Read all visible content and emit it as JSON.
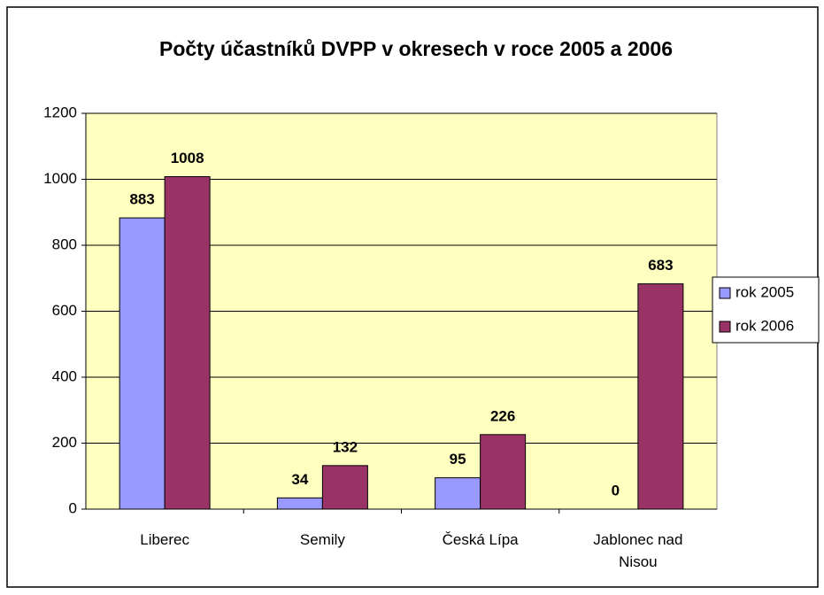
{
  "chart_data": {
    "type": "bar",
    "title": "Počty účastníků DVPP v okresech v roce 2005 a 2006",
    "categories": [
      "Liberec",
      "Semily",
      "Česká Lípa",
      "Jablonec nad Nisou"
    ],
    "series": [
      {
        "name": "rok 2005",
        "color": "#9999ff",
        "values": [
          883,
          34,
          95,
          0
        ]
      },
      {
        "name": "rok 2006",
        "color": "#993366",
        "values": [
          1008,
          132,
          226,
          683
        ]
      }
    ],
    "ylim": [
      0,
      1200
    ],
    "yticks": [
      0,
      200,
      400,
      600,
      800,
      1000,
      1200
    ],
    "grid": true,
    "legend": "right"
  }
}
